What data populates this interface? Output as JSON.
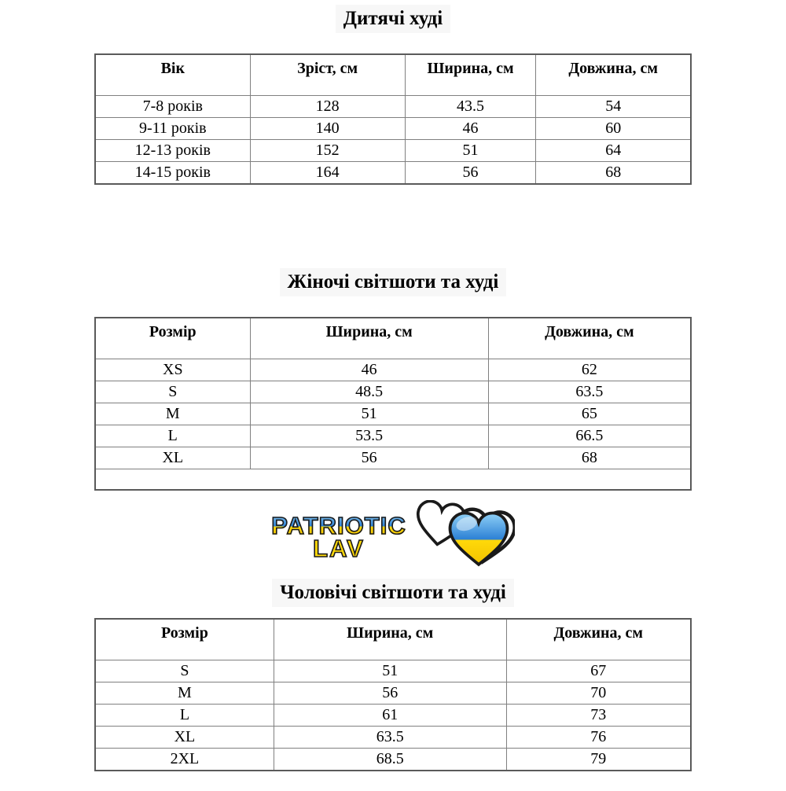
{
  "page": {
    "background": "#ffffff",
    "table_border_color": "#808080"
  },
  "tables": [
    {
      "title": "Дитячі худі",
      "columns": [
        "Вік",
        "Зріст, см",
        "Ширина, см",
        "Довжина, см"
      ],
      "col_widths": [
        "26%",
        "26%",
        "22%",
        "26%"
      ],
      "rows": [
        [
          "7-8 років",
          "128",
          "43.5",
          "54"
        ],
        [
          "9-11 років",
          "140",
          "46",
          "60"
        ],
        [
          "12-13 років",
          "152",
          "51",
          "64"
        ],
        [
          "14-15 років",
          "164",
          "56",
          "68"
        ]
      ],
      "empty_last_row": false
    },
    {
      "title": "Жіночі світшоти та худі",
      "columns": [
        "Розмір",
        "Ширина, см",
        "Довжина, см"
      ],
      "col_widths": [
        "26%",
        "40%",
        "34%"
      ],
      "rows": [
        [
          "XS",
          "46",
          "62"
        ],
        [
          "S",
          "48.5",
          "63.5"
        ],
        [
          "M",
          "51",
          "65"
        ],
        [
          "L",
          "53.5",
          "66.5"
        ],
        [
          "XL",
          "56",
          "68"
        ]
      ],
      "empty_last_row": true
    },
    {
      "title": "Чоловічі світшоти та худі",
      "columns": [
        "Розмір",
        "Ширина, см",
        "Довжина, см"
      ],
      "col_widths": [
        "30%",
        "39%",
        "31%"
      ],
      "rows": [
        [
          "S",
          "51",
          "67"
        ],
        [
          "M",
          "56",
          "70"
        ],
        [
          "L",
          "61",
          "73"
        ],
        [
          "XL",
          "63.5",
          "76"
        ],
        [
          "2XL",
          "68.5",
          "79"
        ]
      ],
      "empty_last_row": false
    }
  ],
  "logo": {
    "line1": "PATRIOTIC",
    "line2": "LAV",
    "colors": {
      "flag_blue": "#2a7fd4",
      "flag_yellow": "#ffd90a",
      "outline": "#1a1a1a"
    }
  }
}
